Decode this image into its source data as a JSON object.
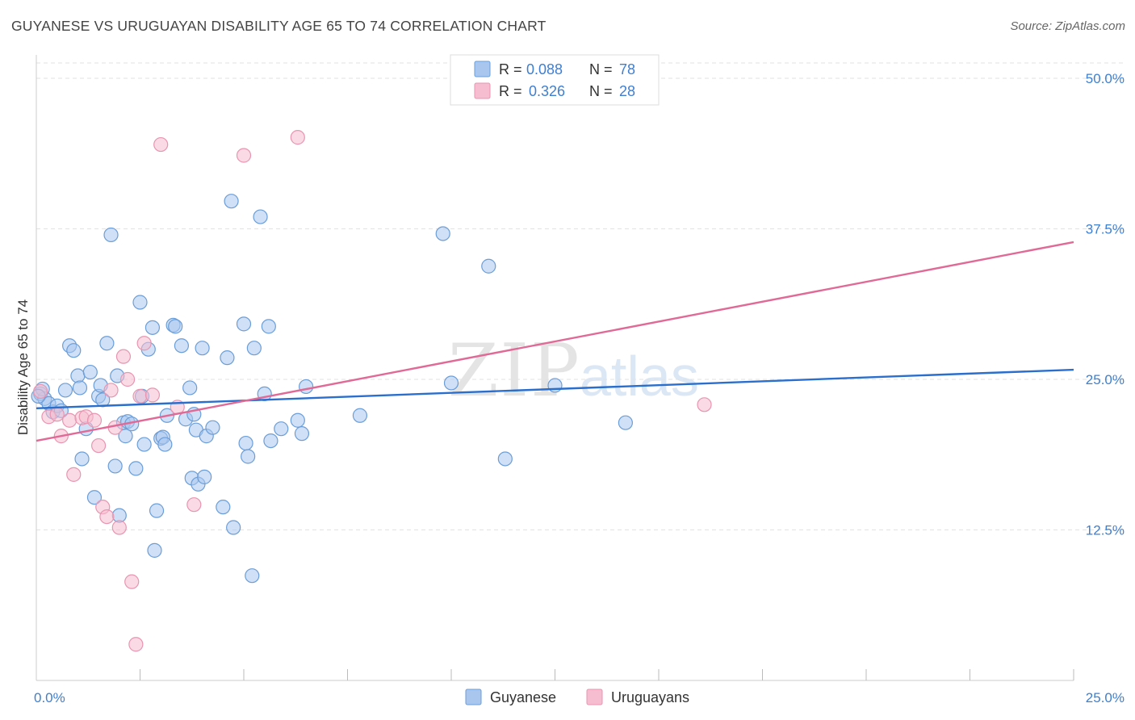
{
  "title": "GUYANESE VS URUGUAYAN DISABILITY AGE 65 TO 74 CORRELATION CHART",
  "source": "Source: ZipAtlas.com",
  "watermark": {
    "zip": "ZIP",
    "atlas": "atlas"
  },
  "colors": {
    "blue_fill": "#a9c7ee",
    "blue_stroke": "#6b9ed8",
    "blue_line": "#2a6fcc",
    "pink_fill": "#f6bdd0",
    "pink_stroke": "#e895b1",
    "pink_line": "#e06a95",
    "tick": "#3f7fd0",
    "grid": "#e2e2e2"
  },
  "legend": {
    "rows": [
      {
        "r_label": "R =",
        "r_value": "0.088",
        "n_label": "N =",
        "n_value": "78",
        "series": "guyanese"
      },
      {
        "r_label": "R =",
        "r_value": "0.326",
        "n_label": "N =",
        "n_value": "28",
        "series": "uruguayans"
      }
    ]
  },
  "bottom_legend": [
    "Guyanese",
    "Uruguayans"
  ],
  "chart_data": {
    "type": "scatter",
    "title": "GUYANESE VS URUGUAYAN DISABILITY AGE 65 TO 74 CORRELATION CHART",
    "xlabel": "",
    "ylabel": "Disability Age 65 to 74",
    "xlim": [
      0,
      25
    ],
    "ylim": [
      0,
      50
    ],
    "x_tick_labels": [
      {
        "value": 0,
        "label": "0.0%"
      },
      {
        "value": 25,
        "label": "25.0%"
      }
    ],
    "y_tick_labels": [
      {
        "value": 12.5,
        "label": "12.5%"
      },
      {
        "value": 25,
        "label": "25.0%"
      },
      {
        "value": 37.5,
        "label": "37.5%"
      },
      {
        "value": 50,
        "label": "50.0%"
      }
    ],
    "grid": true,
    "legend_position": "top-center",
    "series": [
      {
        "name": "Guyanese",
        "r": 0.088,
        "n": 78,
        "trend": [
          [
            0,
            22.6
          ],
          [
            25,
            25.8
          ]
        ],
        "points": [
          [
            0.1,
            23.8
          ],
          [
            0.2,
            23.4
          ],
          [
            0.3,
            23.0
          ],
          [
            0.4,
            22.3
          ],
          [
            0.5,
            22.8
          ],
          [
            0.6,
            22.4
          ],
          [
            0.7,
            24.1
          ],
          [
            0.8,
            27.8
          ],
          [
            0.9,
            27.4
          ],
          [
            1.0,
            25.3
          ],
          [
            1.05,
            24.3
          ],
          [
            1.1,
            18.4
          ],
          [
            1.2,
            20.9
          ],
          [
            1.3,
            25.6
          ],
          [
            1.4,
            15.2
          ],
          [
            1.5,
            23.6
          ],
          [
            1.55,
            24.5
          ],
          [
            1.6,
            23.3
          ],
          [
            1.7,
            28.0
          ],
          [
            1.8,
            37.0
          ],
          [
            1.9,
            17.8
          ],
          [
            1.95,
            25.3
          ],
          [
            2.0,
            13.7
          ],
          [
            2.1,
            21.4
          ],
          [
            2.15,
            20.3
          ],
          [
            2.2,
            21.5
          ],
          [
            2.3,
            21.3
          ],
          [
            2.4,
            17.6
          ],
          [
            2.5,
            31.4
          ],
          [
            2.55,
            23.6
          ],
          [
            2.6,
            19.6
          ],
          [
            2.7,
            27.5
          ],
          [
            2.8,
            29.3
          ],
          [
            2.85,
            10.8
          ],
          [
            2.9,
            14.1
          ],
          [
            3.0,
            20.1
          ],
          [
            3.05,
            20.2
          ],
          [
            3.1,
            19.6
          ],
          [
            3.15,
            22.0
          ],
          [
            3.3,
            29.5
          ],
          [
            3.35,
            29.4
          ],
          [
            3.5,
            27.8
          ],
          [
            3.6,
            21.7
          ],
          [
            3.7,
            24.3
          ],
          [
            3.75,
            16.8
          ],
          [
            3.8,
            22.1
          ],
          [
            3.85,
            20.8
          ],
          [
            3.9,
            16.3
          ],
          [
            4.0,
            27.6
          ],
          [
            4.05,
            16.9
          ],
          [
            4.1,
            20.3
          ],
          [
            4.25,
            21.0
          ],
          [
            4.5,
            14.4
          ],
          [
            4.6,
            26.8
          ],
          [
            4.7,
            39.8
          ],
          [
            4.75,
            12.7
          ],
          [
            5.0,
            29.6
          ],
          [
            5.05,
            19.7
          ],
          [
            5.1,
            18.6
          ],
          [
            5.2,
            8.7
          ],
          [
            5.25,
            27.6
          ],
          [
            5.4,
            38.5
          ],
          [
            5.5,
            23.8
          ],
          [
            5.6,
            29.4
          ],
          [
            5.65,
            19.9
          ],
          [
            5.9,
            20.9
          ],
          [
            6.3,
            21.6
          ],
          [
            6.4,
            20.5
          ],
          [
            6.5,
            24.4
          ],
          [
            7.8,
            22.0
          ],
          [
            9.8,
            37.1
          ],
          [
            10.0,
            24.7
          ],
          [
            10.9,
            34.4
          ],
          [
            11.3,
            18.4
          ],
          [
            12.5,
            24.5
          ],
          [
            14.2,
            21.4
          ],
          [
            0.15,
            24.2
          ],
          [
            0.05,
            23.6
          ]
        ]
      },
      {
        "name": "Uruguayans",
        "r": 0.326,
        "n": 28,
        "trend": [
          [
            0,
            19.9
          ],
          [
            25,
            36.4
          ]
        ],
        "points": [
          [
            0.1,
            24.0
          ],
          [
            0.3,
            21.9
          ],
          [
            0.5,
            22.1
          ],
          [
            0.6,
            20.3
          ],
          [
            0.8,
            21.6
          ],
          [
            0.9,
            17.1
          ],
          [
            1.1,
            21.8
          ],
          [
            1.2,
            21.9
          ],
          [
            1.4,
            21.6
          ],
          [
            1.5,
            19.5
          ],
          [
            1.6,
            14.4
          ],
          [
            1.7,
            13.6
          ],
          [
            1.8,
            24.1
          ],
          [
            1.9,
            21.0
          ],
          [
            2.0,
            12.7
          ],
          [
            2.1,
            26.9
          ],
          [
            2.2,
            25.0
          ],
          [
            2.3,
            8.2
          ],
          [
            2.4,
            3.0
          ],
          [
            2.5,
            23.6
          ],
          [
            2.6,
            28.0
          ],
          [
            2.8,
            23.7
          ],
          [
            3.0,
            44.5
          ],
          [
            3.4,
            22.7
          ],
          [
            3.8,
            14.6
          ],
          [
            5.0,
            43.6
          ],
          [
            6.3,
            45.1
          ],
          [
            16.1,
            22.9
          ]
        ]
      }
    ]
  }
}
